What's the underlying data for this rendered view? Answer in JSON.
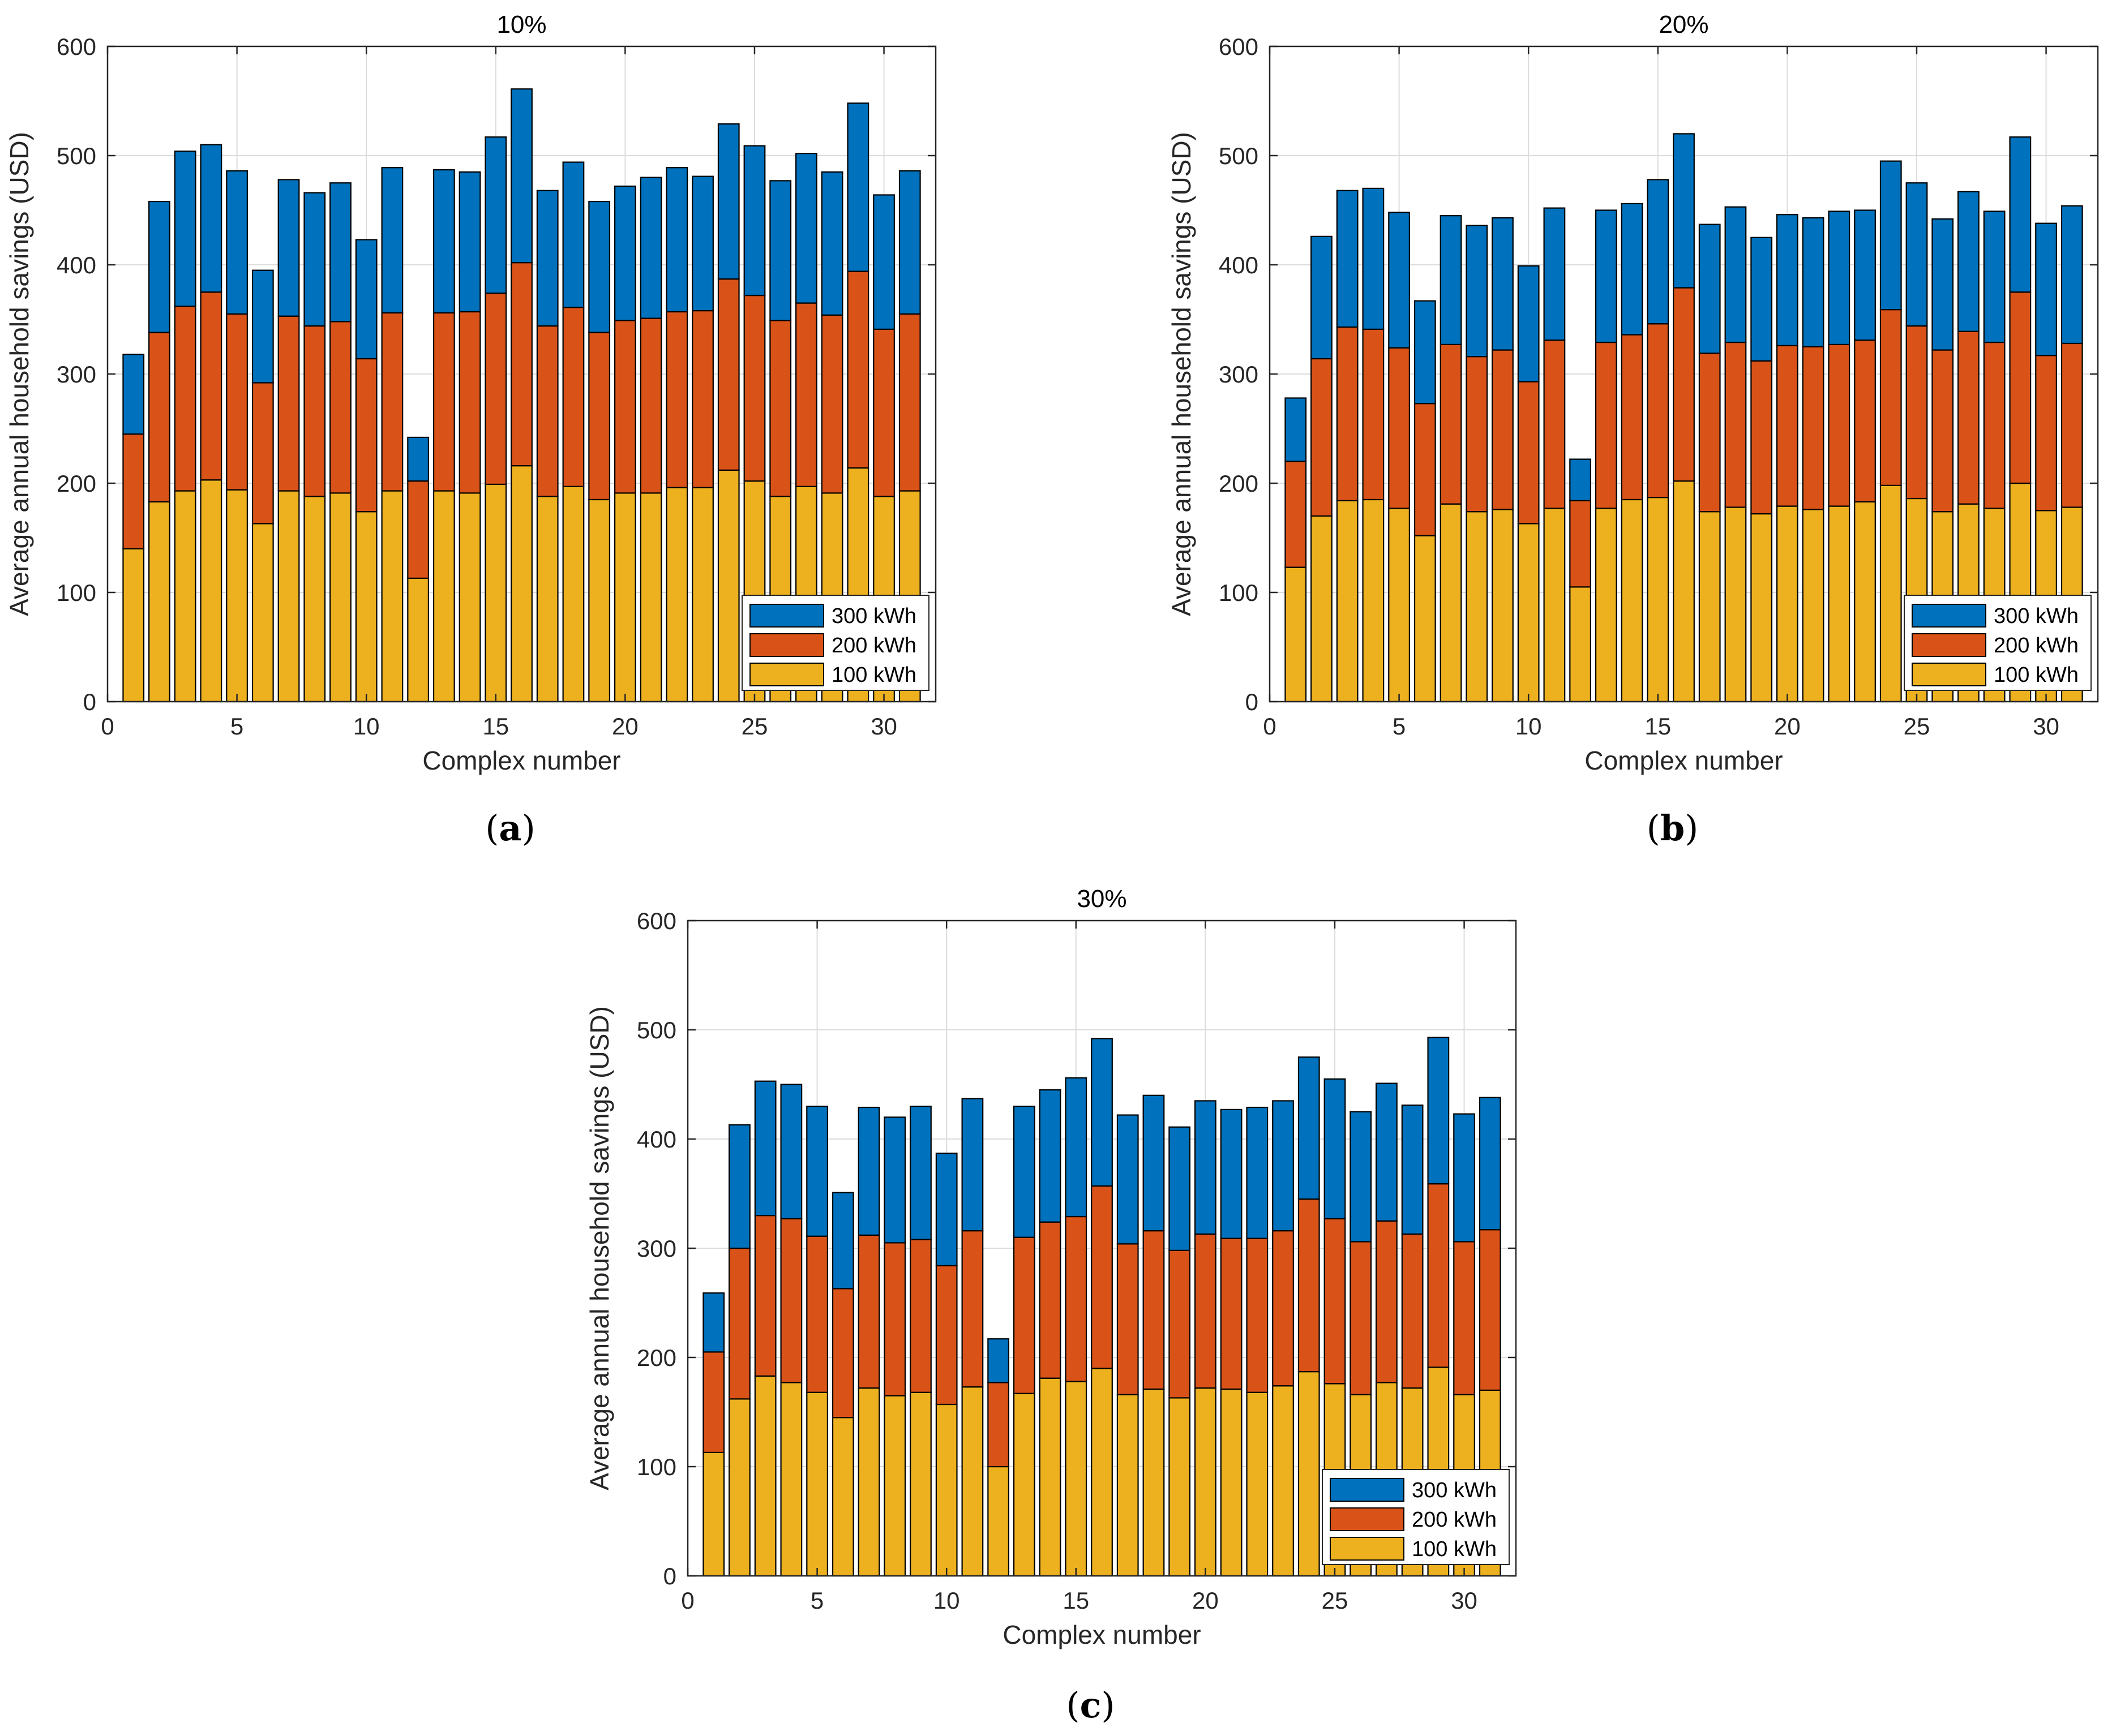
{
  "colors": {
    "s100": "#EDB120",
    "s200": "#D95319",
    "s300": "#0072BD",
    "grid": "#dcdcdc",
    "axis": "#262626"
  },
  "chart_data": [
    {
      "type": "bar",
      "stacked": true,
      "panel_tag": "a",
      "title": "10%",
      "xlabel": "Complex number",
      "ylabel": "Average annual household savings (USD)",
      "xlim": [
        0,
        32
      ],
      "ylim": [
        0,
        600
      ],
      "xticks": [
        0,
        5,
        10,
        15,
        20,
        25,
        30
      ],
      "yticks": [
        0,
        100,
        200,
        300,
        400,
        500,
        600
      ],
      "grid": true,
      "legend_position": "bottom-right",
      "legend_order": [
        "300 kWh",
        "200 kWh",
        "100 kWh"
      ],
      "x": [
        1,
        2,
        3,
        4,
        5,
        6,
        7,
        8,
        9,
        10,
        11,
        12,
        13,
        14,
        15,
        16,
        17,
        18,
        19,
        20,
        21,
        22,
        23,
        24,
        25,
        26,
        27,
        28,
        29,
        30,
        31
      ],
      "series": [
        {
          "name": "100 kWh",
          "color_key": "s100",
          "values": [
            140,
            183,
            193,
            203,
            194,
            163,
            193,
            188,
            191,
            174,
            193,
            113,
            193,
            191,
            199,
            216,
            188,
            197,
            185,
            191,
            191,
            196,
            196,
            212,
            202,
            188,
            197,
            191,
            214,
            188,
            193
          ]
        },
        {
          "name": "200 kWh",
          "color_key": "s200",
          "values": [
            105,
            155,
            169,
            172,
            161,
            129,
            160,
            156,
            157,
            140,
            163,
            89,
            163,
            166,
            175,
            186,
            156,
            164,
            153,
            158,
            160,
            161,
            162,
            175,
            170,
            161,
            168,
            163,
            180,
            153,
            162
          ]
        },
        {
          "name": "300 kWh",
          "color_key": "s300",
          "values": [
            73,
            120,
            142,
            135,
            131,
            103,
            125,
            122,
            127,
            109,
            133,
            40,
            131,
            128,
            143,
            159,
            124,
            133,
            120,
            123,
            129,
            132,
            123,
            142,
            137,
            128,
            137,
            131,
            154,
            123,
            131
          ]
        }
      ]
    },
    {
      "type": "bar",
      "stacked": true,
      "panel_tag": "b",
      "title": "20%",
      "xlabel": "Complex number",
      "ylabel": "Average annual household savings (USD)",
      "xlim": [
        0,
        32
      ],
      "ylim": [
        0,
        600
      ],
      "xticks": [
        0,
        5,
        10,
        15,
        20,
        25,
        30
      ],
      "yticks": [
        0,
        100,
        200,
        300,
        400,
        500,
        600
      ],
      "grid": true,
      "legend_position": "bottom-right",
      "legend_order": [
        "300 kWh",
        "200 kWh",
        "100 kWh"
      ],
      "x": [
        1,
        2,
        3,
        4,
        5,
        6,
        7,
        8,
        9,
        10,
        11,
        12,
        13,
        14,
        15,
        16,
        17,
        18,
        19,
        20,
        21,
        22,
        23,
        24,
        25,
        26,
        27,
        28,
        29,
        30,
        31
      ],
      "series": [
        {
          "name": "100 kWh",
          "color_key": "s100",
          "values": [
            123,
            170,
            184,
            185,
            177,
            152,
            181,
            174,
            176,
            163,
            177,
            105,
            177,
            185,
            187,
            202,
            174,
            178,
            172,
            179,
            176,
            179,
            183,
            198,
            186,
            174,
            181,
            177,
            200,
            175,
            178
          ]
        },
        {
          "name": "200 kWh",
          "color_key": "s200",
          "values": [
            97,
            144,
            159,
            156,
            147,
            121,
            146,
            142,
            146,
            130,
            154,
            79,
            152,
            151,
            159,
            177,
            145,
            151,
            140,
            147,
            149,
            148,
            148,
            161,
            158,
            148,
            158,
            152,
            175,
            142,
            150
          ]
        },
        {
          "name": "300 kWh",
          "color_key": "s300",
          "values": [
            58,
            112,
            125,
            129,
            124,
            94,
            118,
            120,
            121,
            106,
            121,
            38,
            121,
            120,
            132,
            141,
            118,
            124,
            113,
            120,
            118,
            122,
            119,
            136,
            131,
            120,
            128,
            120,
            142,
            121,
            126
          ]
        }
      ]
    },
    {
      "type": "bar",
      "stacked": true,
      "panel_tag": "c",
      "title": "30%",
      "xlabel": "Complex number",
      "ylabel": "Average annual household savings (USD)",
      "xlim": [
        0,
        32
      ],
      "ylim": [
        0,
        600
      ],
      "xticks": [
        0,
        5,
        10,
        15,
        20,
        25,
        30
      ],
      "yticks": [
        0,
        100,
        200,
        300,
        400,
        500,
        600
      ],
      "grid": true,
      "legend_position": "bottom-right",
      "legend_order": [
        "300 kWh",
        "200 kWh",
        "100 kWh"
      ],
      "x": [
        1,
        2,
        3,
        4,
        5,
        6,
        7,
        8,
        9,
        10,
        11,
        12,
        13,
        14,
        15,
        16,
        17,
        18,
        19,
        20,
        21,
        22,
        23,
        24,
        25,
        26,
        27,
        28,
        29,
        30,
        31
      ],
      "series": [
        {
          "name": "100 kWh",
          "color_key": "s100",
          "values": [
            113,
            162,
            183,
            177,
            168,
            145,
            172,
            165,
            168,
            157,
            173,
            100,
            167,
            181,
            178,
            190,
            166,
            171,
            163,
            172,
            171,
            168,
            174,
            187,
            176,
            166,
            177,
            172,
            191,
            166,
            170
          ]
        },
        {
          "name": "200 kWh",
          "color_key": "s200",
          "values": [
            92,
            138,
            147,
            150,
            143,
            118,
            140,
            140,
            140,
            127,
            143,
            77,
            143,
            143,
            151,
            167,
            138,
            145,
            135,
            141,
            138,
            141,
            142,
            158,
            151,
            140,
            148,
            141,
            168,
            140,
            147
          ]
        },
        {
          "name": "300 kWh",
          "color_key": "s300",
          "values": [
            54,
            113,
            123,
            123,
            119,
            88,
            117,
            115,
            122,
            103,
            121,
            40,
            120,
            121,
            127,
            135,
            118,
            124,
            113,
            122,
            118,
            120,
            119,
            130,
            128,
            119,
            126,
            118,
            134,
            117,
            121
          ]
        }
      ]
    }
  ]
}
